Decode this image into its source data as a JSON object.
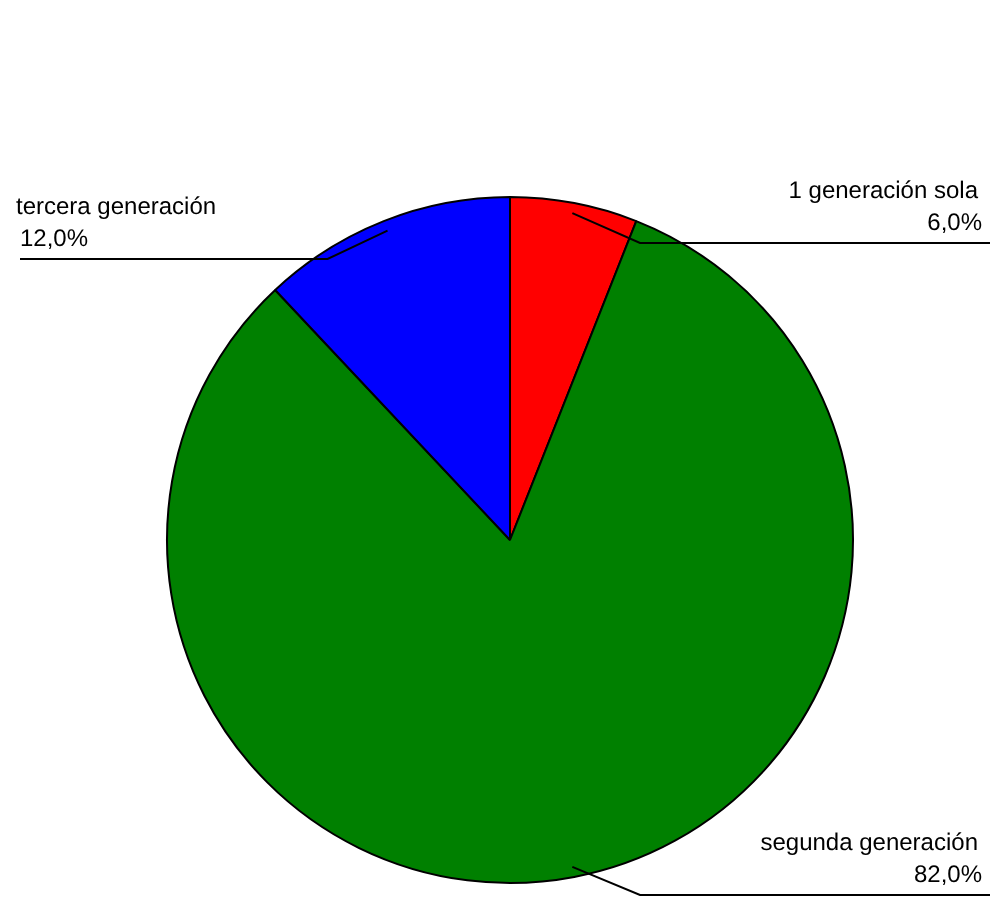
{
  "chart_data": {
    "type": "pie",
    "categories": [
      "1 generación sola",
      "segunda generación",
      "tercera generación"
    ],
    "values": [
      6,
      82,
      12
    ],
    "colors": [
      "#ff0000",
      "#008000",
      "#0000ff"
    ],
    "value_labels": [
      "6,0%",
      "82,0%",
      "12,0%"
    ],
    "legend": false
  }
}
